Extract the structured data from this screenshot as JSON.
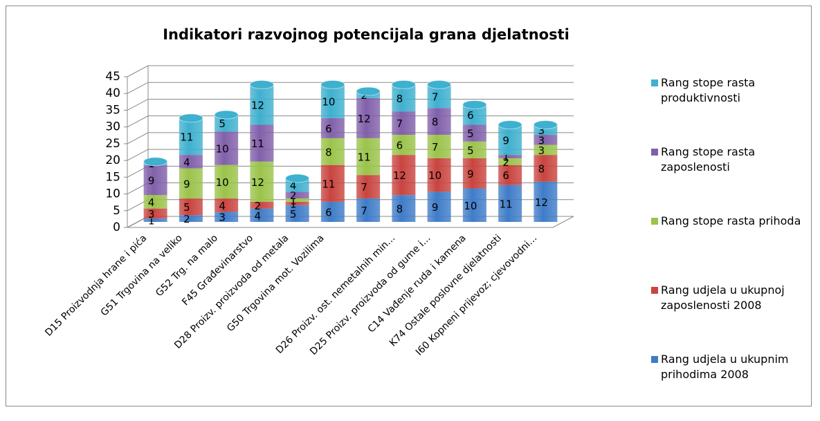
{
  "chart_data": {
    "type": "bar",
    "stacked": true,
    "title": "Indikatori razvojnog potencijala grana djelatnosti",
    "categories": [
      "D15 Proizvodnja hrane i pića",
      "G51 Trgovina na veliko",
      "G52 Trg. na malo",
      "F45 Građevinarstvo",
      "D28 Proizv. proizvoda od metala",
      "G50 Trgovina mot. Vozilima",
      null,
      "D26 Proizv. ost. nemetalnih min...",
      "D25 Proizv. proizvoda od gume i...",
      "C14 Vađenje  ruda i kamena",
      "K74 Ostale poslovne djelatnosti",
      "I60 Kopneni prijevoz; cjevovodni..."
    ],
    "series": [
      {
        "name": "Rang udjela u ukupnim prihodima 2008",
        "color": "#3f7cc8",
        "values": [
          1,
          2,
          3,
          4,
          5,
          6,
          7,
          8,
          9,
          10,
          11,
          12
        ]
      },
      {
        "name": "Rang udjela u ukupnoj zaposlenosti 2008",
        "color": "#c9443f",
        "values": [
          3,
          5,
          4,
          2,
          1,
          11,
          7,
          12,
          10,
          9,
          6,
          8
        ]
      },
      {
        "name": "Rang stope rasta prihoda",
        "color": "#9bc34a",
        "values": [
          4,
          9,
          10,
          12,
          1,
          8,
          11,
          6,
          7,
          5,
          2,
          3
        ]
      },
      {
        "name": "Rang stope rasta zaposlenosti",
        "color": "#8160aa",
        "values": [
          9,
          4,
          10,
          11,
          2,
          6,
          12,
          7,
          8,
          5,
          1,
          3
        ]
      },
      {
        "name": "Rang stope rasta produktivnosti",
        "color": "#3fb0cf",
        "values": [
          1,
          11,
          5,
          12,
          4,
          10,
          2,
          8,
          7,
          6,
          9,
          3
        ]
      }
    ],
    "ylim": [
      0,
      45
    ],
    "yticks": [
      0,
      5,
      10,
      15,
      20,
      25,
      30,
      35,
      40,
      45
    ],
    "grid": true,
    "legend": "right"
  }
}
